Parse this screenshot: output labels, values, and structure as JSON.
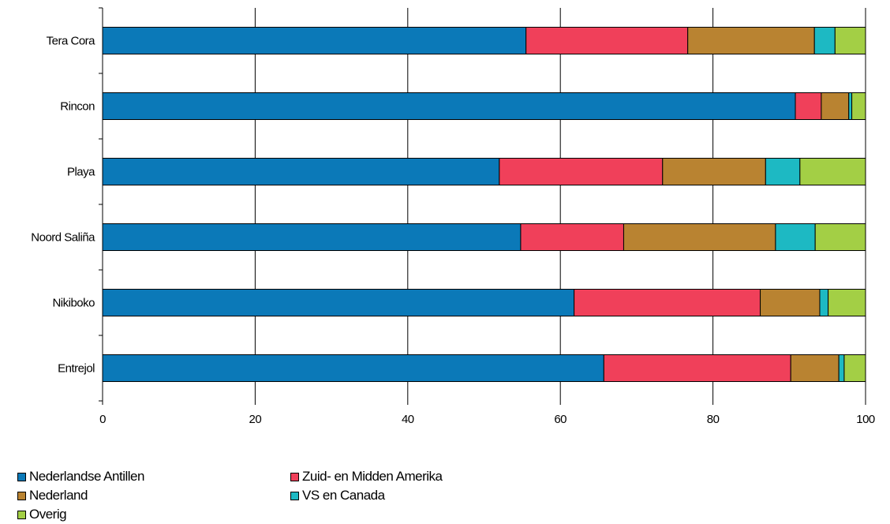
{
  "chart_data": {
    "type": "bar",
    "orientation": "horizontal",
    "stacked": true,
    "categories": [
      "Tera Cora",
      "Rincon",
      "Playa",
      "Noord Saliña",
      "Nikiboko",
      "Entrejol"
    ],
    "series": [
      {
        "name": "Nederlandse Antillen",
        "color": "#0b79b8",
        "values": [
          55.5,
          90.8,
          52.0,
          54.8,
          61.8,
          65.7
        ]
      },
      {
        "name": "Zuid- en Midden Amerika",
        "color": "#f0405a",
        "values": [
          21.2,
          3.4,
          21.4,
          13.5,
          24.4,
          24.5
        ]
      },
      {
        "name": "Nederland",
        "color": "#b98331",
        "values": [
          16.6,
          3.6,
          13.5,
          19.9,
          7.8,
          6.3
        ]
      },
      {
        "name": "VS en Canada",
        "color": "#1db9c3",
        "values": [
          2.7,
          0.4,
          4.5,
          5.2,
          1.1,
          0.7
        ]
      },
      {
        "name": "Overig",
        "color": "#a3cf45",
        "values": [
          4.0,
          1.8,
          8.6,
          6.6,
          4.9,
          2.8
        ]
      }
    ],
    "xlim": [
      0,
      100
    ],
    "xticks": [
      "0",
      "20",
      "40",
      "60",
      "80",
      "100"
    ],
    "grid": "vertical",
    "legend_position": "bottom-left"
  }
}
